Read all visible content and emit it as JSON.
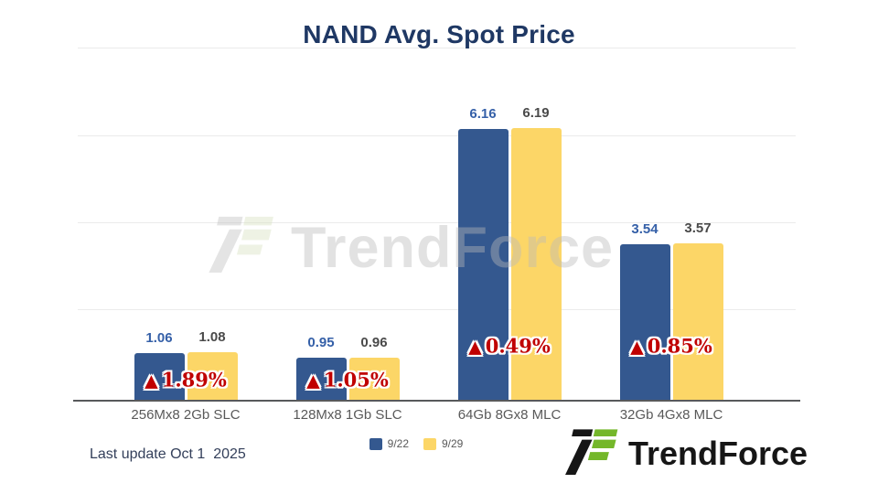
{
  "chart_data": {
    "type": "bar",
    "title": "NAND Avg. Spot Price",
    "categories": [
      "256Mx8 2Gb SLC",
      "128Mx8 1Gb SLC",
      "64Gb 8Gx8 MLC",
      "32Gb 4Gx8 MLC"
    ],
    "series": [
      {
        "name": "9/22",
        "color": "#34588f",
        "value_label_color": "#3560a8",
        "values": [
          1.06,
          0.95,
          6.16,
          3.54
        ]
      },
      {
        "name": "9/29",
        "color": "#fcd667",
        "value_label_color": "#4a4a4a",
        "values": [
          1.08,
          0.96,
          6.19,
          3.57
        ]
      }
    ],
    "change_labels": [
      {
        "direction": "up",
        "text": "1.89%"
      },
      {
        "direction": "up",
        "text": "1.05%"
      },
      {
        "direction": "up",
        "text": "0.49%"
      },
      {
        "direction": "up",
        "text": "0.85%"
      }
    ],
    "change_symbol_up": "▲",
    "change_color": "#c00000",
    "xlabel": "",
    "ylabel": "",
    "ylim": [
      0,
      8
    ],
    "gridline_step": 2,
    "grid": "horizontal",
    "legend_position": "bottom-center"
  },
  "footer": {
    "last_update": "Last update Oct 1  2025"
  },
  "brand": {
    "logo_text": "TrendForce",
    "watermark_text": "TrendForce",
    "logo_green": "#74b72a",
    "logo_black": "#161616"
  }
}
